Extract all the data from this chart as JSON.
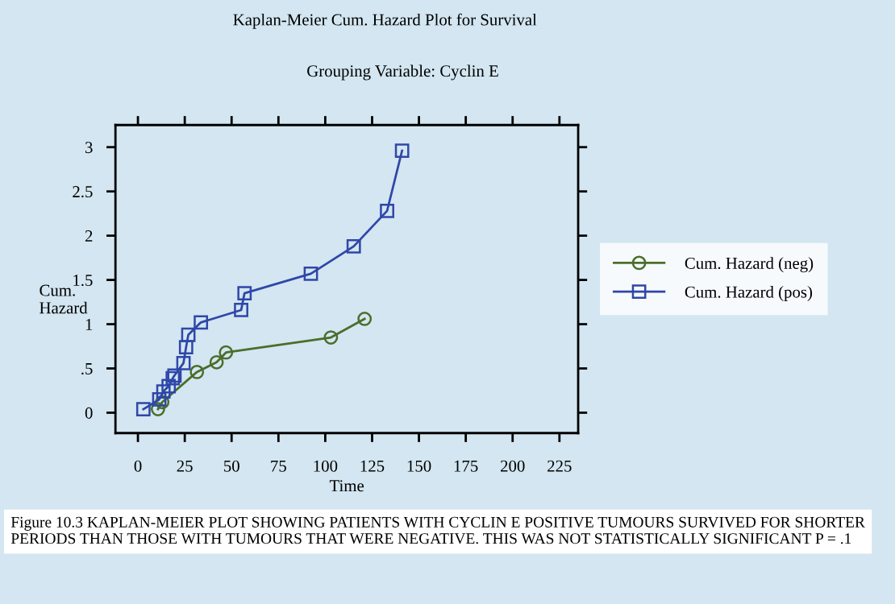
{
  "chart_data": {
    "type": "line",
    "title": "Kaplan-Meier Cum. Hazard Plot for Survival",
    "subtitle": "Grouping Variable: Cyclin E",
    "xlabel": "Time",
    "ylabel": "Cum.\nHazard",
    "series": [
      {
        "name": "Cum. Hazard (neg)",
        "color": "#4a6e2a",
        "marker": "circle",
        "x": [
          10.7,
          13,
          31.5,
          42,
          47,
          103,
          121
        ],
        "values": [
          0.04,
          0.12,
          0.46,
          0.57,
          0.68,
          0.85,
          1.06
        ]
      },
      {
        "name": "Cum. Hazard (pos)",
        "color": "#2f47a8",
        "marker": "square",
        "x": [
          2.9,
          11.4,
          13.6,
          16.4,
          18.6,
          19.5,
          24.3,
          25.7,
          26.9,
          33.6,
          55.1,
          56.9,
          92.3,
          115.2,
          133,
          141
        ],
        "values": [
          0.04,
          0.15,
          0.24,
          0.3,
          0.39,
          0.42,
          0.56,
          0.74,
          0.88,
          1.02,
          1.16,
          1.35,
          1.57,
          1.88,
          2.28,
          2.96
        ]
      }
    ],
    "xlim": [
      -12,
      235
    ],
    "xticks": [
      0,
      25,
      50,
      75,
      100,
      125,
      150,
      175,
      200,
      225
    ],
    "ylim": [
      -0.23,
      3.25
    ],
    "yticks": [
      0,
      {
        "value": 0.5,
        "label": ".5"
      },
      1,
      1.5,
      2,
      2.5,
      3
    ],
    "grid": false,
    "legend": "right",
    "annotations": [
      "Figure 10.3 KAPLAN-MEIER PLOT SHOWING PATIENTS WITH CYCLIN E POSITIVE TUMOURS SURVIVED FOR SHORTER PERIODS THAN THOSE WITH TUMOURS THAT WERE NEGATIVE. THIS WAS NOT STATISTICALLY SIGNIFICANT P = .1"
    ]
  }
}
